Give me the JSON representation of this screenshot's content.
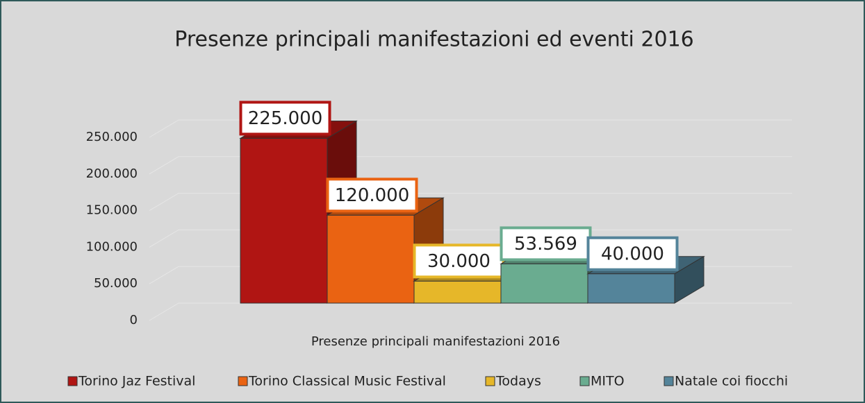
{
  "chart_data": {
    "type": "bar3d",
    "title": "Presenze principali manifestazioni ed eventi 2016",
    "categories": [
      "Presenze principali manifestazioni 2016"
    ],
    "series": [
      {
        "name": "Torino Jaz Festival",
        "color": "#b01513",
        "values": [
          225000
        ],
        "value_labels": [
          "225.000"
        ]
      },
      {
        "name": "Torino Classical Music Festival",
        "color": "#ea6312",
        "values": [
          120000
        ],
        "value_labels": [
          "120.000"
        ]
      },
      {
        "name": "Todays",
        "color": "#e6b729",
        "values": [
          30000
        ],
        "value_labels": [
          "30.000"
        ]
      },
      {
        "name": "MITO",
        "color": "#6aac90",
        "values": [
          53569
        ],
        "value_labels": [
          "53.569"
        ]
      },
      {
        "name": "Natale coi fiocchi",
        "color": "#54849a",
        "values": [
          40000
        ],
        "value_labels": [
          "40.000"
        ]
      }
    ],
    "ylim": [
      0,
      250000
    ],
    "yticks": [
      0,
      {
        "value": 50000,
        "label": "50.000"
      },
      {
        "value": 100000,
        "label": "100.000"
      },
      {
        "value": 150000,
        "label": "150.000"
      },
      {
        "value": 200000,
        "label": "200.000"
      },
      {
        "value": 250000,
        "label": "250.000"
      }
    ],
    "grid": true
  }
}
